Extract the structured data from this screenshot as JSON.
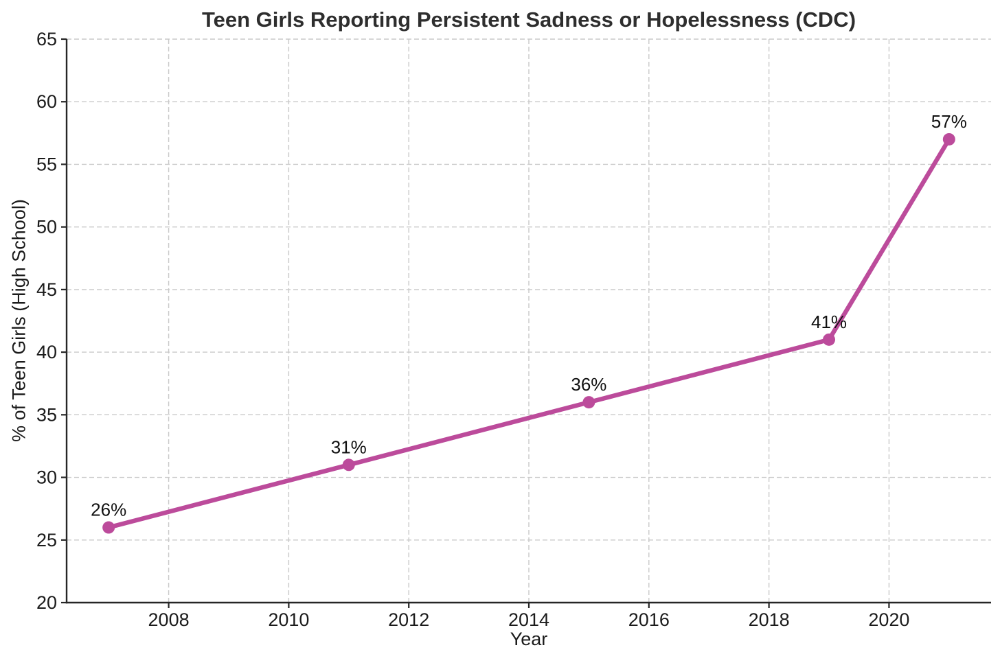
{
  "figure": {
    "background": "#ffffff"
  },
  "colors": {
    "line": "#bc4b9b",
    "grid": "#c9c9c9",
    "spine": "#262626",
    "tick_text": "#1b1b1b",
    "annotation_text": "#111111",
    "title_text": "#2e2e2e"
  },
  "chart_data": {
    "type": "line",
    "title": "Teen Girls Reporting Persistent Sadness or Hopelessness (CDC)",
    "xlabel": "Year",
    "ylabel": "% of Teen Girls (High School)",
    "series": [
      {
        "name": "Teen girls reporting persistent sadness or hopelessness",
        "x": [
          2007,
          2011,
          2015,
          2019,
          2021
        ],
        "values": [
          26,
          31,
          36,
          41,
          57
        ],
        "point_labels": [
          "26%",
          "31%",
          "36%",
          "41%",
          "57%"
        ],
        "color": "#bc4b9b",
        "marker": "circle"
      }
    ],
    "xticks": [
      2008,
      2010,
      2012,
      2014,
      2016,
      2018,
      2020
    ],
    "yticks": [
      20,
      25,
      30,
      35,
      40,
      45,
      50,
      55,
      60,
      65
    ],
    "xlim": [
      2006.3,
      2021.7
    ],
    "ylim": [
      20,
      65
    ],
    "grid": true,
    "grid_style": "dashed",
    "legend_position": "none"
  }
}
